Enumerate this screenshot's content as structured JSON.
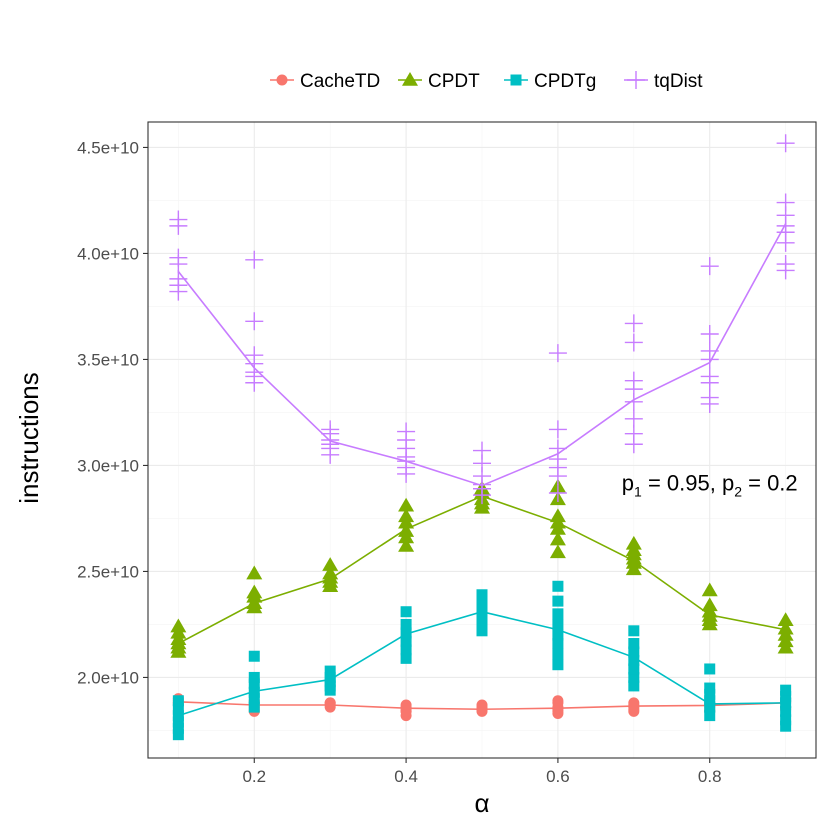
{
  "chart_data": {
    "type": "line",
    "title": "",
    "xlabel": "α",
    "ylabel": "instructions",
    "xlim": [
      0.06,
      0.94
    ],
    "ylim": [
      16200000000.0,
      46200000000.0
    ],
    "x_ticks": [
      0.2,
      0.4,
      0.6,
      0.8
    ],
    "x_tick_labels": [
      "0.2",
      "0.4",
      "0.6",
      "0.8"
    ],
    "y_ticks": [
      20000000000.0,
      25000000000.0,
      30000000000.0,
      35000000000.0,
      40000000000.0,
      45000000000.0
    ],
    "y_tick_labels": [
      "2.0e+10",
      "2.5e+10",
      "3.0e+10",
      "3.5e+10",
      "4.0e+10",
      "4.5e+10"
    ],
    "grid": true,
    "legend_position": "top",
    "annotation": {
      "text": "p",
      "sub1": "1",
      "mid": " = 0.95, p",
      "sub2": "2",
      "end": " = 0.2",
      "x": 0.8,
      "y": 29000000000.0
    },
    "x": [
      0.1,
      0.2,
      0.3,
      0.4,
      0.5,
      0.6,
      0.7,
      0.8,
      0.9
    ],
    "series": [
      {
        "name": "CacheTD",
        "color": "#F8766D",
        "marker": "circle",
        "mean": [
          18850000000.0,
          18700000000.0,
          18700000000.0,
          18550000000.0,
          18500000000.0,
          18550000000.0,
          18650000000.0,
          18680000000.0,
          18800000000.0
        ],
        "points": [
          [
            18900000000.0,
            18800000000.0,
            18700000000.0,
            19000000000.0,
            18800000000.0
          ],
          [
            18400000000.0,
            18600000000.0,
            18800000000.0,
            18900000000.0,
            18500000000.0,
            18700000000.0
          ],
          [
            18600000000.0,
            18700000000.0,
            18800000000.0,
            18800000000.0
          ],
          [
            18200000000.0,
            18400000000.0,
            18500000000.0,
            18600000000.0,
            18700000000.0,
            18400000000.0
          ],
          [
            18400000000.0,
            18500000000.0,
            18600000000.0,
            18700000000.0,
            18500000000.0
          ],
          [
            18300000000.0,
            18500000000.0,
            18600000000.0,
            18800000000.0,
            18900000000.0,
            18400000000.0
          ],
          [
            18500000000.0,
            18600000000.0,
            18700000000.0,
            18800000000.0,
            18400000000.0
          ],
          [
            18500000000.0,
            18600000000.0,
            18700000000.0,
            18800000000.0,
            18400000000.0
          ],
          [
            18600000000.0,
            18800000000.0,
            19000000000.0,
            18900000000.0,
            18500000000.0
          ]
        ]
      },
      {
        "name": "CPDT",
        "color": "#7CAE00",
        "marker": "triangle",
        "mean": [
          21600000000.0,
          23500000000.0,
          24650000000.0,
          27000000000.0,
          28550000000.0,
          27300000000.0,
          25500000000.0,
          22950000000.0,
          22250000000.0
        ],
        "points": [
          [
            21200000000.0,
            21400000000.0,
            21600000000.0,
            21800000000.0,
            22100000000.0,
            22400000000.0
          ],
          [
            23300000000.0,
            23500000000.0,
            23800000000.0,
            24000000000.0,
            24900000000.0
          ],
          [
            24300000000.0,
            24500000000.0,
            24700000000.0,
            24900000000.0,
            25300000000.0
          ],
          [
            26200000000.0,
            26600000000.0,
            26900000000.0,
            27300000000.0,
            27600000000.0,
            28100000000.0
          ],
          [
            28000000000.0,
            28200000000.0,
            28400000000.0,
            28700000000.0,
            28900000000.0
          ],
          [
            25900000000.0,
            26500000000.0,
            27000000000.0,
            27300000000.0,
            27600000000.0,
            28400000000.0,
            29000000000.0
          ],
          [
            25100000000.0,
            25400000000.0,
            25600000000.0,
            25800000000.0,
            26000000000.0,
            26300000000.0
          ],
          [
            22500000000.0,
            22700000000.0,
            22900000000.0,
            23100000000.0,
            23400000000.0,
            24100000000.0
          ],
          [
            21400000000.0,
            21700000000.0,
            22000000000.0,
            22300000000.0,
            22700000000.0
          ]
        ]
      },
      {
        "name": "CPDTg",
        "color": "#00BFC4",
        "marker": "square",
        "mean": [
          18200000000.0,
          19350000000.0,
          19900000000.0,
          22050000000.0,
          23100000000.0,
          22250000000.0,
          20950000000.0,
          18750000000.0,
          18800000000.0
        ],
        "points": [
          [
            17300000000.0,
            17600000000.0,
            17900000000.0,
            18200000000.0,
            18500000000.0,
            18900000000.0
          ],
          [
            18600000000.0,
            19000000000.0,
            19300000000.0,
            19700000000.0,
            20000000000.0,
            21000000000.0
          ],
          [
            19400000000.0,
            19600000000.0,
            19800000000.0,
            20000000000.0,
            20300000000.0
          ],
          [
            20900000000.0,
            21300000000.0,
            21700000000.0,
            22100000000.0,
            22500000000.0,
            23100000000.0
          ],
          [
            22200000000.0,
            22600000000.0,
            23000000000.0,
            23400000000.0,
            23900000000.0
          ],
          [
            20600000000.0,
            21100000000.0,
            21600000000.0,
            22000000000.0,
            22500000000.0,
            23000000000.0,
            23600000000.0,
            24300000000.0
          ],
          [
            19600000000.0,
            20000000000.0,
            20400000000.0,
            20800000000.0,
            21200000000.0,
            21600000000.0,
            22200000000.0
          ],
          [
            18200000000.0,
            18600000000.0,
            18900000000.0,
            19200000000.0,
            19500000000.0,
            20400000000.0
          ],
          [
            17700000000.0,
            18000000000.0,
            18400000000.0,
            18800000000.0,
            19100000000.0,
            19400000000.0
          ]
        ]
      },
      {
        "name": "tqDist",
        "color": "#C77CFF",
        "marker": "plus",
        "mean": [
          39150000000.0,
          34600000000.0,
          31150000000.0,
          30200000000.0,
          29050000000.0,
          30550000000.0,
          33100000000.0,
          34850000000.0,
          41400000000.0
        ],
        "points": [
          [
            38200000000.0,
            38500000000.0,
            38800000000.0,
            39500000000.0,
            39800000000.0,
            41300000000.0,
            41600000000.0
          ],
          [
            33900000000.0,
            34200000000.0,
            34400000000.0,
            34800000000.0,
            35200000000.0,
            36800000000.0,
            39700000000.0
          ],
          [
            30500000000.0,
            30800000000.0,
            31000000000.0,
            31200000000.0,
            31500000000.0,
            31700000000.0
          ],
          [
            29600000000.0,
            29900000000.0,
            30200000000.0,
            30400000000.0,
            30800000000.0,
            31200000000.0,
            31600000000.0
          ],
          [
            28600000000.0,
            28900000000.0,
            29100000000.0,
            29500000000.0,
            30100000000.0,
            30700000000.0
          ],
          [
            28700000000.0,
            29500000000.0,
            29900000000.0,
            30300000000.0,
            30800000000.0,
            31700000000.0,
            35300000000.0
          ],
          [
            31000000000.0,
            31500000000.0,
            32200000000.0,
            33000000000.0,
            33600000000.0,
            34000000000.0,
            35800000000.0,
            36700000000.0
          ],
          [
            32900000000.0,
            33200000000.0,
            33900000000.0,
            34200000000.0,
            35000000000.0,
            35400000000.0,
            36200000000.0,
            39400000000.0
          ],
          [
            39200000000.0,
            39500000000.0,
            40500000000.0,
            41000000000.0,
            41300000000.0,
            41800000000.0,
            42400000000.0,
            45200000000.0
          ]
        ]
      }
    ]
  }
}
